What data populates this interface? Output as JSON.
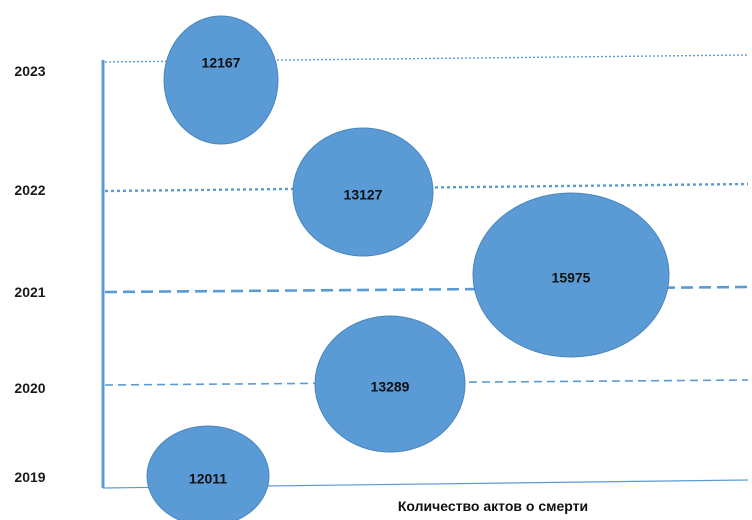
{
  "chart_data": {
    "type": "scatter",
    "title": "",
    "xlabel": "Количество актов о смерти",
    "ylabel": "",
    "bubble_color": "#5B9BD5",
    "line_color": "#5B9BD5",
    "points": [
      {
        "year": "2019",
        "value": 12011
      },
      {
        "year": "2020",
        "value": 13289
      },
      {
        "year": "2021",
        "value": 15975
      },
      {
        "year": "2022",
        "value": 13127
      },
      {
        "year": "2023",
        "value": 12167
      }
    ]
  }
}
